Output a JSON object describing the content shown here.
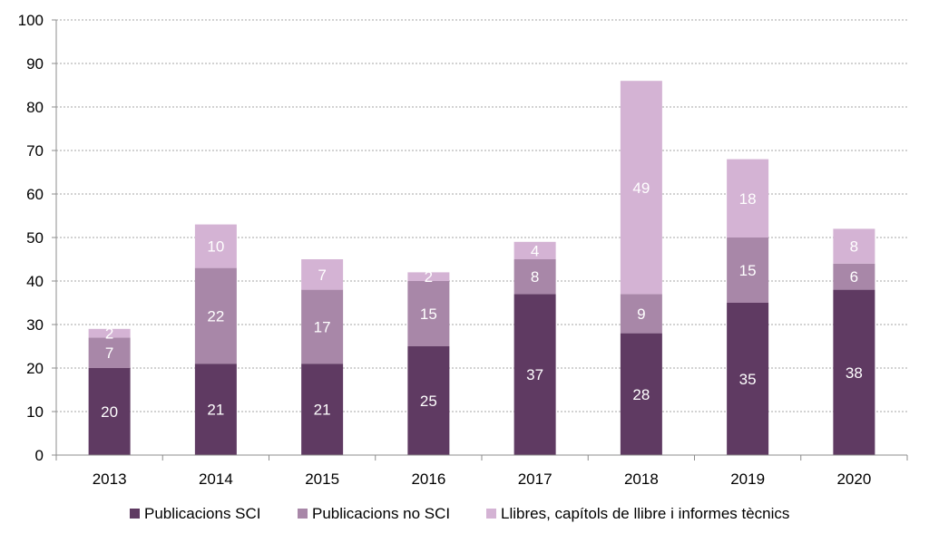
{
  "chart_data": {
    "type": "bar",
    "stacked": true,
    "title": "",
    "xlabel": "",
    "ylabel": "",
    "categories": [
      "2013",
      "2014",
      "2015",
      "2016",
      "2017",
      "2018",
      "2019",
      "2020"
    ],
    "ylim": [
      0,
      100
    ],
    "yticks": [
      "0",
      "10",
      "20",
      "30",
      "40",
      "50",
      "60",
      "70",
      "80",
      "90",
      "100"
    ],
    "grid": true,
    "legend_position": "bottom",
    "series": [
      {
        "name": "Publicacions SCI",
        "color": "#5f3a62",
        "values": [
          20,
          21,
          21,
          25,
          37,
          28,
          35,
          38
        ]
      },
      {
        "name": "Publicacions no SCI",
        "color": "#a887a8",
        "values": [
          7,
          22,
          17,
          15,
          8,
          9,
          15,
          6
        ]
      },
      {
        "name": "Llibres, capítols de llibre i informes tècnics",
        "color": "#d4b3d4",
        "values": [
          2,
          10,
          7,
          2,
          4,
          49,
          18,
          8
        ]
      }
    ]
  }
}
